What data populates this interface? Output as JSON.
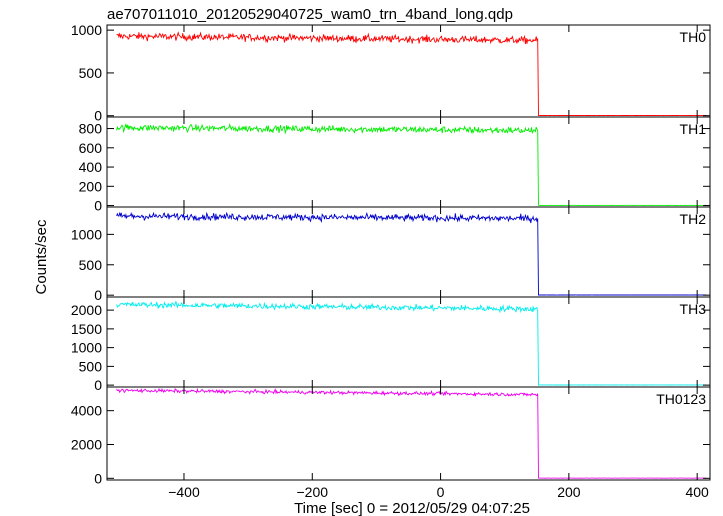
{
  "chart_data": {
    "type": "line",
    "title": "ae707011010_20120529040725_wam0_trn_4band_long.qdp",
    "xlabel": "Time [sec] 0 = 2012/05/29 04:07:25",
    "ylabel": "Counts/sec",
    "xlim": [
      -520,
      420
    ],
    "xticks": [
      -400,
      -200,
      0,
      200,
      400
    ],
    "grid": false,
    "drop_time": 152,
    "series": [
      {
        "name": "TH0",
        "color": "#ff0000",
        "ylim": [
          -15,
          1060
        ],
        "yticks": [
          0,
          500,
          1000
        ],
        "start": 930,
        "end": 880,
        "noise": 30,
        "after": 2
      },
      {
        "name": "TH1",
        "color": "#00ee00",
        "ylim": [
          -15,
          920
        ],
        "yticks": [
          0,
          200,
          400,
          600,
          800
        ],
        "start": 810,
        "end": 780,
        "noise": 25,
        "after": 2
      },
      {
        "name": "TH2",
        "color": "#0000cc",
        "ylim": [
          -30,
          1450
        ],
        "yticks": [
          0,
          500,
          1000
        ],
        "start": 1300,
        "end": 1260,
        "noise": 40,
        "after": 3
      },
      {
        "name": "TH3",
        "color": "#00eeee",
        "ylim": [
          -50,
          2350
        ],
        "yticks": [
          0,
          500,
          1000,
          1500,
          2000
        ],
        "start": 2150,
        "end": 2030,
        "noise": 55,
        "after": 5
      },
      {
        "name": "TH0123",
        "color": "#ee00ee",
        "ylim": [
          -100,
          5400
        ],
        "yticks": [
          0,
          2000,
          4000
        ],
        "start": 5200,
        "end": 4950,
        "noise": 70,
        "after": 10
      }
    ]
  }
}
